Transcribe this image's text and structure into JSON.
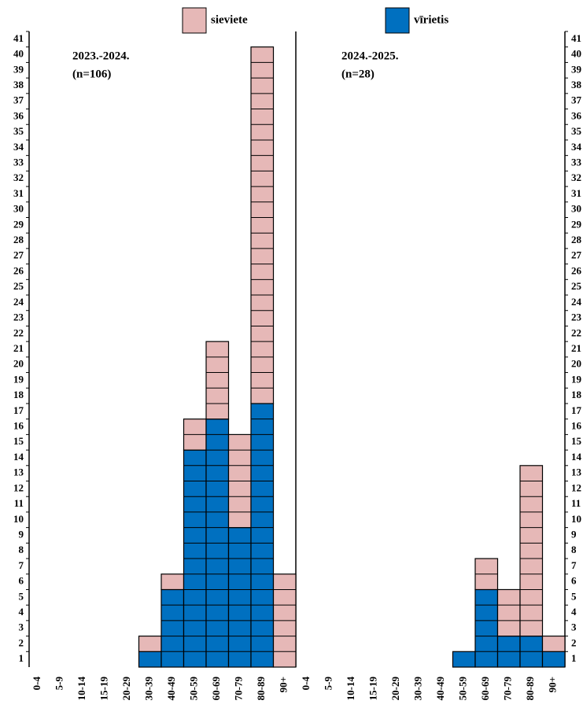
{
  "chart_data": [
    {
      "type": "bar",
      "stacked": true,
      "annotations": [
        "2023.-2024.",
        "(n=106)"
      ],
      "categories": [
        "0-4",
        "5-9",
        "10-14",
        "15-19",
        "20-29",
        "30-39",
        "40-49",
        "50-59",
        "60-69",
        "70-79",
        "80-89",
        "90+"
      ],
      "series": [
        {
          "name": "sieviete",
          "color": "#e6b8b7",
          "values": [
            0,
            0,
            0,
            0,
            0,
            1,
            1,
            2,
            5,
            6,
            23,
            6
          ]
        },
        {
          "name": "vīrietis",
          "color": "#0070c0",
          "values": [
            0,
            0,
            0,
            0,
            0,
            1,
            5,
            14,
            16,
            9,
            17,
            0
          ]
        }
      ],
      "ylim": [
        0,
        41
      ],
      "yticks": [
        1,
        2,
        3,
        4,
        5,
        6,
        7,
        8,
        9,
        10,
        11,
        12,
        13,
        14,
        15,
        16,
        17,
        18,
        19,
        20,
        21,
        22,
        23,
        24,
        25,
        26,
        27,
        28,
        29,
        30,
        31,
        32,
        33,
        34,
        35,
        36,
        37,
        38,
        39,
        40,
        41
      ],
      "axis_side": "left"
    },
    {
      "type": "bar",
      "stacked": true,
      "annotations": [
        "2024.-2025.",
        "(n=28)"
      ],
      "categories": [
        "0-4",
        "5-9",
        "10-14",
        "15-19",
        "20-29",
        "30-39",
        "40-49",
        "50-59",
        "60-69",
        "70-79",
        "80-89",
        "90+"
      ],
      "series": [
        {
          "color": "#e6b8b7",
          "values": [
            0,
            0,
            0,
            0,
            0,
            0,
            0,
            0,
            2,
            3,
            11,
            1
          ]
        },
        {
          "color": "#0070c0",
          "values": [
            0,
            0,
            0,
            0,
            0,
            0,
            0,
            1,
            5,
            2,
            2,
            1
          ]
        }
      ],
      "ylim": [
        0,
        41
      ],
      "yticks": [
        1,
        2,
        3,
        4,
        5,
        6,
        7,
        8,
        9,
        10,
        11,
        12,
        13,
        14,
        15,
        16,
        17,
        18,
        19,
        20,
        21,
        22,
        23,
        24,
        25,
        26,
        27,
        28,
        29,
        30,
        31,
        32,
        33,
        34,
        35,
        36,
        37,
        38,
        39,
        40,
        41
      ],
      "axis_side": "right"
    }
  ]
}
